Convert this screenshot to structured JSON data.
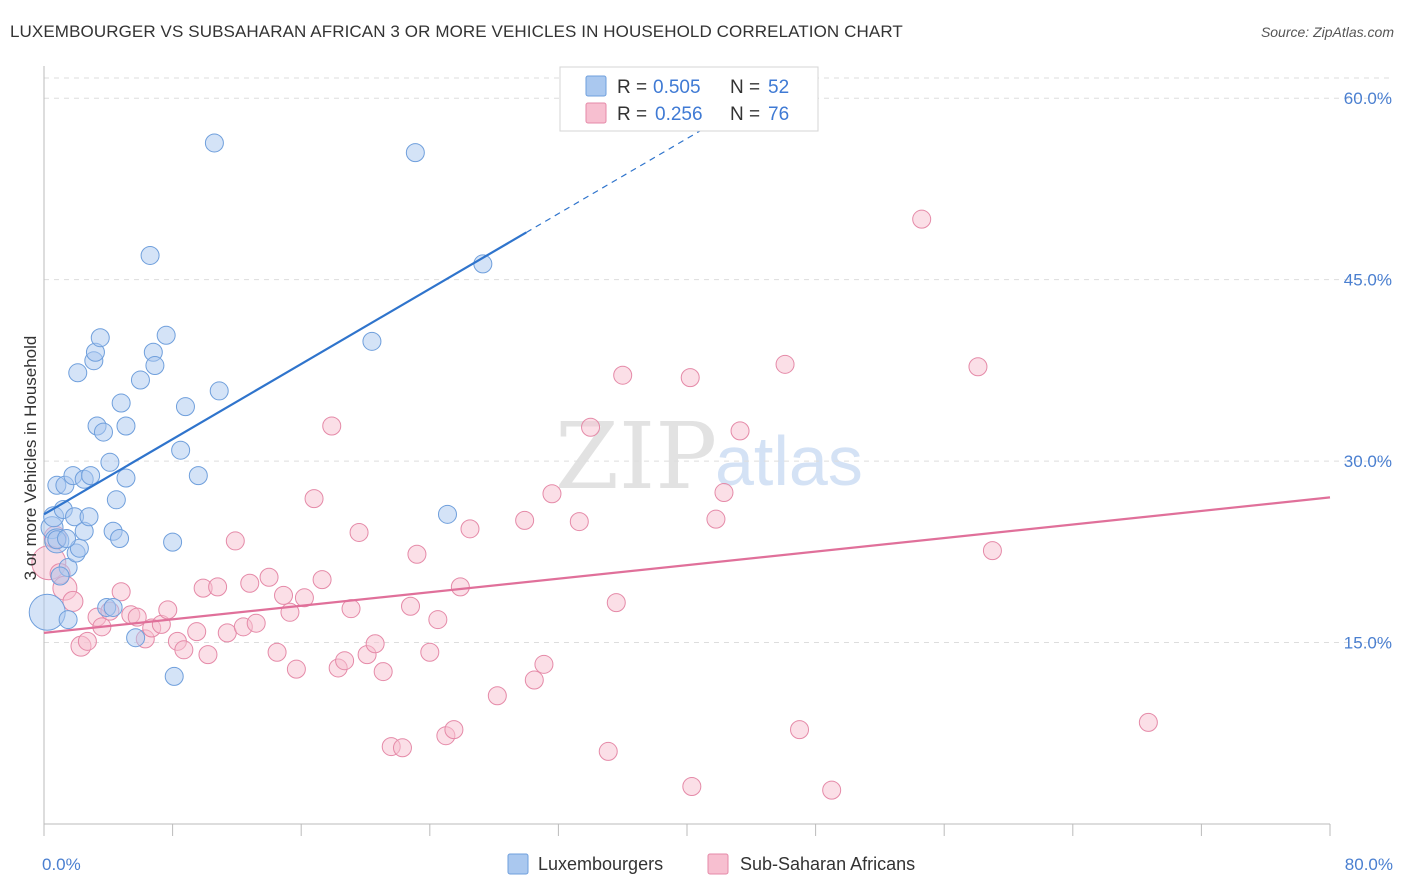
{
  "title": "LUXEMBOURGER VS SUBSAHARAN AFRICAN 3 OR MORE VEHICLES IN HOUSEHOLD CORRELATION CHART",
  "source": "Source: ZipAtlas.com",
  "watermark": {
    "zip": "ZIP",
    "atlas": "atlas"
  },
  "legend_top": {
    "r_label": "R =",
    "n_label": "N =",
    "rows": [
      {
        "r": "0.505",
        "n": "52"
      },
      {
        "r": "0.256",
        "n": "76"
      }
    ]
  },
  "colors": {
    "blue_fill": "#aac8ef",
    "blue_stroke": "#6f9fdc",
    "blue_line": "#2f74cc",
    "pink_fill": "#f7bfd0",
    "pink_stroke": "#e58aa8",
    "pink_line": "#e0709a",
    "grid": "#dddddd",
    "tick_text": "#4a7fd0"
  },
  "chart_data": {
    "type": "scatter",
    "title": "LUXEMBOURGER VS SUBSAHARAN AFRICAN 3 OR MORE VEHICLES IN HOUSEHOLD CORRELATION CHART",
    "xlabel": "",
    "ylabel": "3 or more Vehicles in Household",
    "xlim": [
      0,
      80
    ],
    "ylim": [
      0,
      62
    ],
    "x_tick_labels": [
      "0.0%",
      "80.0%"
    ],
    "y_ticks": [
      15,
      30,
      45,
      60
    ],
    "y_tick_labels": [
      "15.0%",
      "30.0%",
      "45.0%",
      "60.0%"
    ],
    "legend_position": "top-center",
    "series": [
      {
        "name": "Luxembourgers",
        "r": 0.505,
        "n": 52,
        "trend": {
          "x0": 0.0,
          "y0": 25.6,
          "x1": 30.0,
          "y1": 48.9,
          "dash_to_x": 43.0
        },
        "points": [
          [
            0.2,
            17.5,
            18
          ],
          [
            0.5,
            24.5,
            11
          ],
          [
            0.6,
            25.4,
            10
          ],
          [
            0.8,
            23.4,
            12
          ],
          [
            0.8,
            28.0,
            9
          ],
          [
            1.2,
            26.0,
            9
          ],
          [
            1.3,
            28.0,
            9
          ],
          [
            1.5,
            21.2,
            9
          ],
          [
            1.5,
            16.9,
            9
          ],
          [
            1.8,
            28.8,
            9
          ],
          [
            1.9,
            25.4,
            9
          ],
          [
            2.0,
            22.4,
            9
          ],
          [
            2.1,
            37.3,
            9
          ],
          [
            2.2,
            22.8,
            9
          ],
          [
            2.5,
            24.2,
            9
          ],
          [
            2.5,
            28.5,
            9
          ],
          [
            2.8,
            25.4,
            9
          ],
          [
            2.9,
            28.8,
            9
          ],
          [
            3.1,
            38.3,
            9
          ],
          [
            3.2,
            39.0,
            9
          ],
          [
            3.3,
            32.9,
            9
          ],
          [
            3.5,
            40.2,
            9
          ],
          [
            3.7,
            32.4,
            9
          ],
          [
            3.9,
            17.9,
            9
          ],
          [
            4.1,
            29.9,
            9
          ],
          [
            4.3,
            17.9,
            9
          ],
          [
            4.3,
            24.2,
            9
          ],
          [
            4.5,
            26.8,
            9
          ],
          [
            4.7,
            23.6,
            9
          ],
          [
            4.8,
            34.8,
            9
          ],
          [
            5.1,
            32.9,
            9
          ],
          [
            5.1,
            28.6,
            9
          ],
          [
            5.7,
            15.4,
            9
          ],
          [
            6.0,
            36.7,
            9
          ],
          [
            6.6,
            47.0,
            9
          ],
          [
            6.8,
            39.0,
            9
          ],
          [
            6.9,
            37.9,
            9
          ],
          [
            7.6,
            40.4,
            9
          ],
          [
            8.0,
            23.3,
            9
          ],
          [
            8.1,
            12.2,
            9
          ],
          [
            8.5,
            30.9,
            9
          ],
          [
            8.8,
            34.5,
            9
          ],
          [
            9.6,
            28.8,
            9
          ],
          [
            10.6,
            56.3,
            9
          ],
          [
            10.9,
            35.8,
            9
          ],
          [
            20.4,
            39.9,
            9
          ],
          [
            23.1,
            55.5,
            9
          ],
          [
            25.1,
            25.6,
            9
          ],
          [
            27.3,
            46.3,
            9
          ],
          [
            0.8,
            23.5,
            9
          ],
          [
            1.0,
            20.5,
            9
          ],
          [
            1.4,
            23.6,
            9
          ]
        ]
      },
      {
        "name": "Sub-Saharan Africans",
        "r": 0.256,
        "n": 76,
        "trend": {
          "x0": 0.0,
          "y0": 15.8,
          "x1": 80.0,
          "y1": 27.0
        },
        "points": [
          [
            0.3,
            21.6,
            17
          ],
          [
            0.7,
            23.7,
            11
          ],
          [
            1.0,
            20.7,
            10
          ],
          [
            1.3,
            19.5,
            12
          ],
          [
            1.8,
            18.4,
            10
          ],
          [
            2.3,
            14.7,
            10
          ],
          [
            2.7,
            15.1,
            9
          ],
          [
            3.3,
            17.1,
            9
          ],
          [
            3.6,
            16.3,
            9
          ],
          [
            4.1,
            17.6,
            9
          ],
          [
            4.8,
            19.2,
            9
          ],
          [
            5.4,
            17.3,
            9
          ],
          [
            5.8,
            17.1,
            9
          ],
          [
            6.3,
            15.3,
            9
          ],
          [
            6.7,
            16.2,
            9
          ],
          [
            7.3,
            16.5,
            9
          ],
          [
            7.7,
            17.7,
            9
          ],
          [
            8.3,
            15.1,
            9
          ],
          [
            8.7,
            14.4,
            9
          ],
          [
            9.5,
            15.9,
            9
          ],
          [
            9.9,
            19.5,
            9
          ],
          [
            10.2,
            14.0,
            9
          ],
          [
            10.8,
            19.6,
            9
          ],
          [
            11.4,
            15.8,
            9
          ],
          [
            11.9,
            23.4,
            9
          ],
          [
            12.4,
            16.3,
            9
          ],
          [
            12.8,
            19.9,
            9
          ],
          [
            13.2,
            16.6,
            9
          ],
          [
            14.0,
            20.4,
            9
          ],
          [
            14.5,
            14.2,
            9
          ],
          [
            14.9,
            18.9,
            9
          ],
          [
            15.3,
            17.5,
            9
          ],
          [
            15.7,
            12.8,
            9
          ],
          [
            16.2,
            18.7,
            9
          ],
          [
            16.8,
            26.9,
            9
          ],
          [
            17.3,
            20.2,
            9
          ],
          [
            17.9,
            32.9,
            9
          ],
          [
            18.3,
            12.9,
            9
          ],
          [
            18.7,
            13.5,
            9
          ],
          [
            19.1,
            17.8,
            9
          ],
          [
            19.6,
            24.1,
            9
          ],
          [
            20.1,
            14.0,
            9
          ],
          [
            20.6,
            14.9,
            9
          ],
          [
            21.1,
            12.6,
            9
          ],
          [
            21.6,
            6.4,
            9
          ],
          [
            22.3,
            6.3,
            9
          ],
          [
            22.8,
            18.0,
            9
          ],
          [
            23.2,
            22.3,
            9
          ],
          [
            24.0,
            14.2,
            9
          ],
          [
            24.5,
            16.9,
            9
          ],
          [
            25.0,
            7.3,
            9
          ],
          [
            25.5,
            7.8,
            9
          ],
          [
            25.9,
            19.6,
            9
          ],
          [
            26.5,
            24.4,
            9
          ],
          [
            28.2,
            10.6,
            9
          ],
          [
            29.9,
            25.1,
            9
          ],
          [
            30.5,
            11.9,
            9
          ],
          [
            31.1,
            13.2,
            9
          ],
          [
            31.6,
            27.3,
            9
          ],
          [
            33.3,
            25.0,
            9
          ],
          [
            34.0,
            32.8,
            9
          ],
          [
            35.1,
            6.0,
            9
          ],
          [
            35.6,
            18.3,
            9
          ],
          [
            36.0,
            37.1,
            9
          ],
          [
            40.3,
            3.1,
            9
          ],
          [
            40.2,
            36.9,
            9
          ],
          [
            41.8,
            25.2,
            9
          ],
          [
            42.3,
            27.4,
            9
          ],
          [
            43.3,
            32.5,
            9
          ],
          [
            46.1,
            38.0,
            9
          ],
          [
            47.0,
            7.8,
            9
          ],
          [
            49.0,
            2.8,
            9
          ],
          [
            54.6,
            50.0,
            9
          ],
          [
            58.1,
            37.8,
            9
          ],
          [
            59.0,
            22.6,
            9
          ],
          [
            68.7,
            8.4,
            9
          ]
        ]
      }
    ]
  },
  "legend_bottom": [
    "Luxembourgers",
    "Sub-Saharan Africans"
  ]
}
